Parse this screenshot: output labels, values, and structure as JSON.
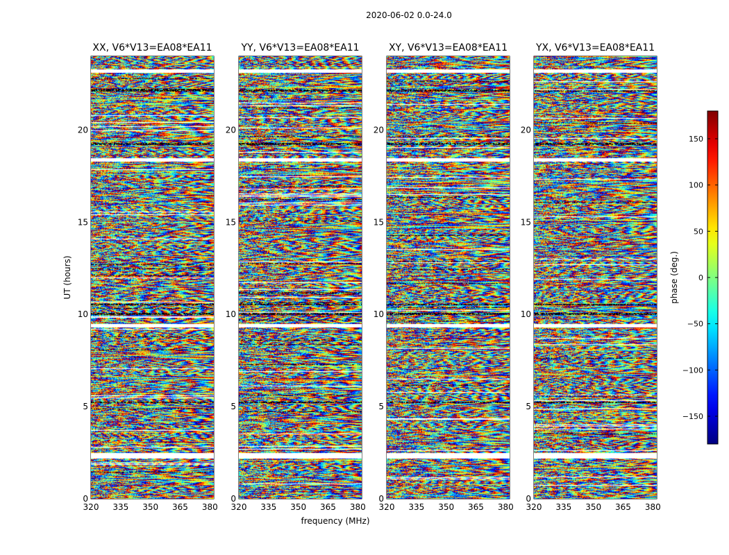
{
  "chart_data": {
    "type": "heatmap",
    "suptitle": "2020-06-02 0.0-24.0",
    "xlabel": "frequency (MHz)",
    "ylabel": "UT (hours)",
    "xlim": [
      320,
      382
    ],
    "ylim": [
      0,
      24
    ],
    "xticks": [
      320,
      335,
      350,
      365,
      380
    ],
    "yticks": [
      0,
      5,
      10,
      15,
      20
    ],
    "colormap": "jet",
    "colorbar": {
      "label": "phase (deg.)",
      "range": [
        -180,
        180
      ],
      "ticks": [
        -150,
        -100,
        -50,
        0,
        50,
        100,
        150
      ],
      "tick_labels": [
        "−150",
        "−100",
        "−50",
        "0",
        "50",
        "100",
        "150"
      ]
    },
    "panels": [
      {
        "title": "XX, V6*V13=EA08*EA11",
        "seed": 11
      },
      {
        "title": "YY, V6*V13=EA08*EA11",
        "seed": 23
      },
      {
        "title": "XY, V6*V13=EA08*EA11",
        "seed": 37
      },
      {
        "title": "YX, V6*V13=EA08*EA11",
        "seed": 53
      }
    ],
    "flagged_bands_hours": [
      [
        2.2,
        2.5
      ],
      [
        9.3,
        9.5
      ],
      [
        18.3,
        18.5
      ],
      [
        23.1,
        23.3
      ]
    ],
    "dark_bands_hours": [
      [
        5.2,
        5.3
      ],
      [
        10.0,
        10.1
      ],
      [
        10.5,
        10.6
      ],
      [
        19.2,
        19.3
      ],
      [
        22.1,
        22.2
      ]
    ]
  }
}
